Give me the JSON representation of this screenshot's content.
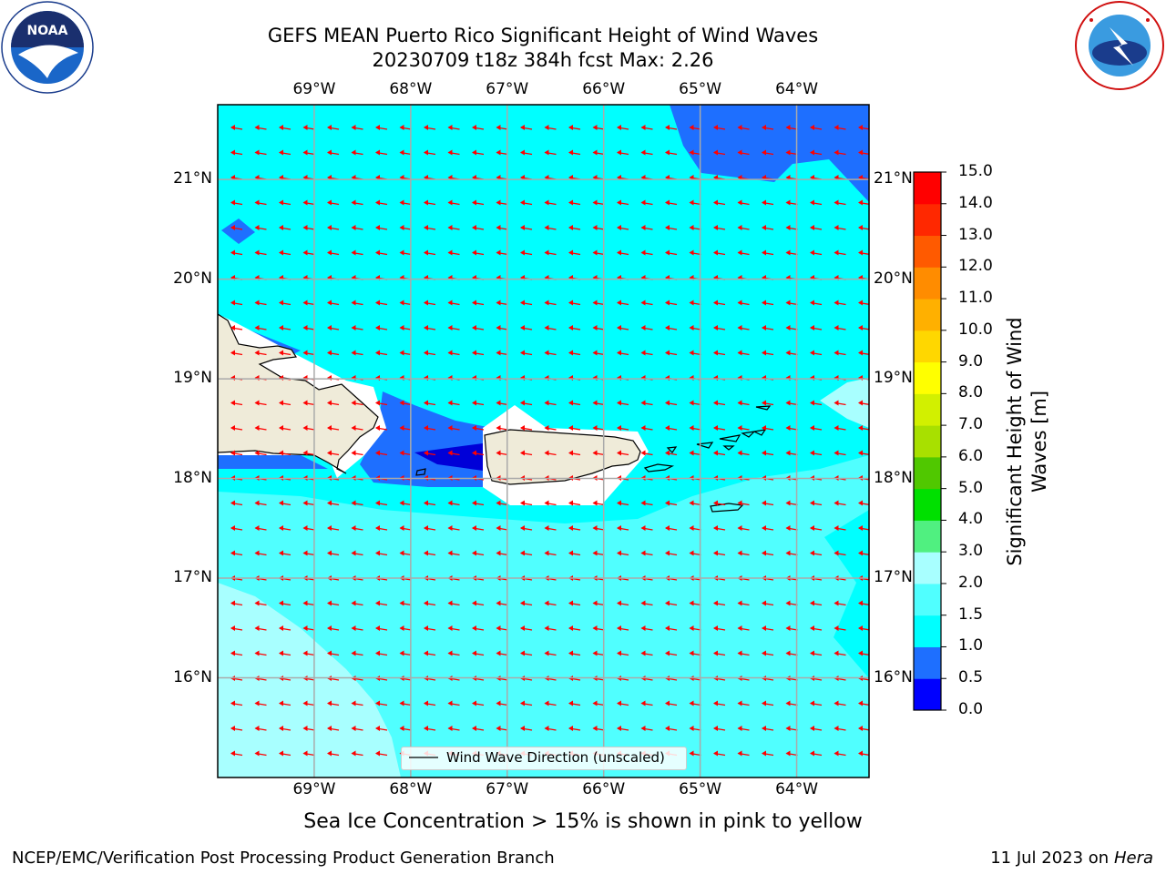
{
  "header": {
    "title_line1": "GEFS MEAN Puerto Rico Significant Height of Wind Waves",
    "title_line2": "20230709 t18z 384h fcst   Max: 2.26"
  },
  "logos": {
    "left": "noaa-logo",
    "left_text": "NOAA",
    "right": "nws-logo",
    "right_text": "NATIONAL WEATHER SERVICE"
  },
  "map": {
    "lon_labels": [
      "69°W",
      "68°W",
      "67°W",
      "66°W",
      "65°W",
      "64°W"
    ],
    "lat_labels": [
      "21°N",
      "20°N",
      "19°N",
      "18°N",
      "17°N",
      "16°N"
    ],
    "lon_values": [
      -69,
      -68,
      -67,
      -66,
      -65,
      -64
    ],
    "lat_values": [
      21,
      20,
      19,
      18,
      17,
      16
    ],
    "extent": {
      "lon": [
        -70.0,
        -63.25
      ],
      "lat": [
        15.0,
        21.75
      ]
    },
    "land_color": "#efebd9",
    "vector_color": "#ff0000",
    "wind_wave_direction": "westward"
  },
  "legend": {
    "label": "Wind Wave Direction (unscaled)"
  },
  "colorbar": {
    "label_line1": "Significant Height of Wind",
    "label_line2": "Waves [m]",
    "tick_labels": [
      "0.0",
      "0.5",
      "1.0",
      "1.5",
      "2.0",
      "3.0",
      "4.0",
      "5.0",
      "6.0",
      "7.0",
      "8.0",
      "9.0",
      "10.0",
      "11.0",
      "12.0",
      "13.0",
      "14.0",
      "15.0"
    ],
    "colors": [
      "#0000ff",
      "#1e6fff",
      "#00ffff",
      "#50ffff",
      "#a8ffff",
      "#50f080",
      "#00e000",
      "#50c800",
      "#a8e000",
      "#d2f000",
      "#ffff00",
      "#ffd700",
      "#ffb000",
      "#ff8c00",
      "#ff5a00",
      "#ff2800",
      "#ff0000"
    ]
  },
  "notes": {
    "sea_ice": "Sea Ice Concentration > 15% is shown in pink to yellow"
  },
  "footer": {
    "left": "NCEP/EMC/Verification Post Processing Product Generation Branch",
    "right_prefix": "11 Jul 2023 on ",
    "right_host": "Hera"
  }
}
